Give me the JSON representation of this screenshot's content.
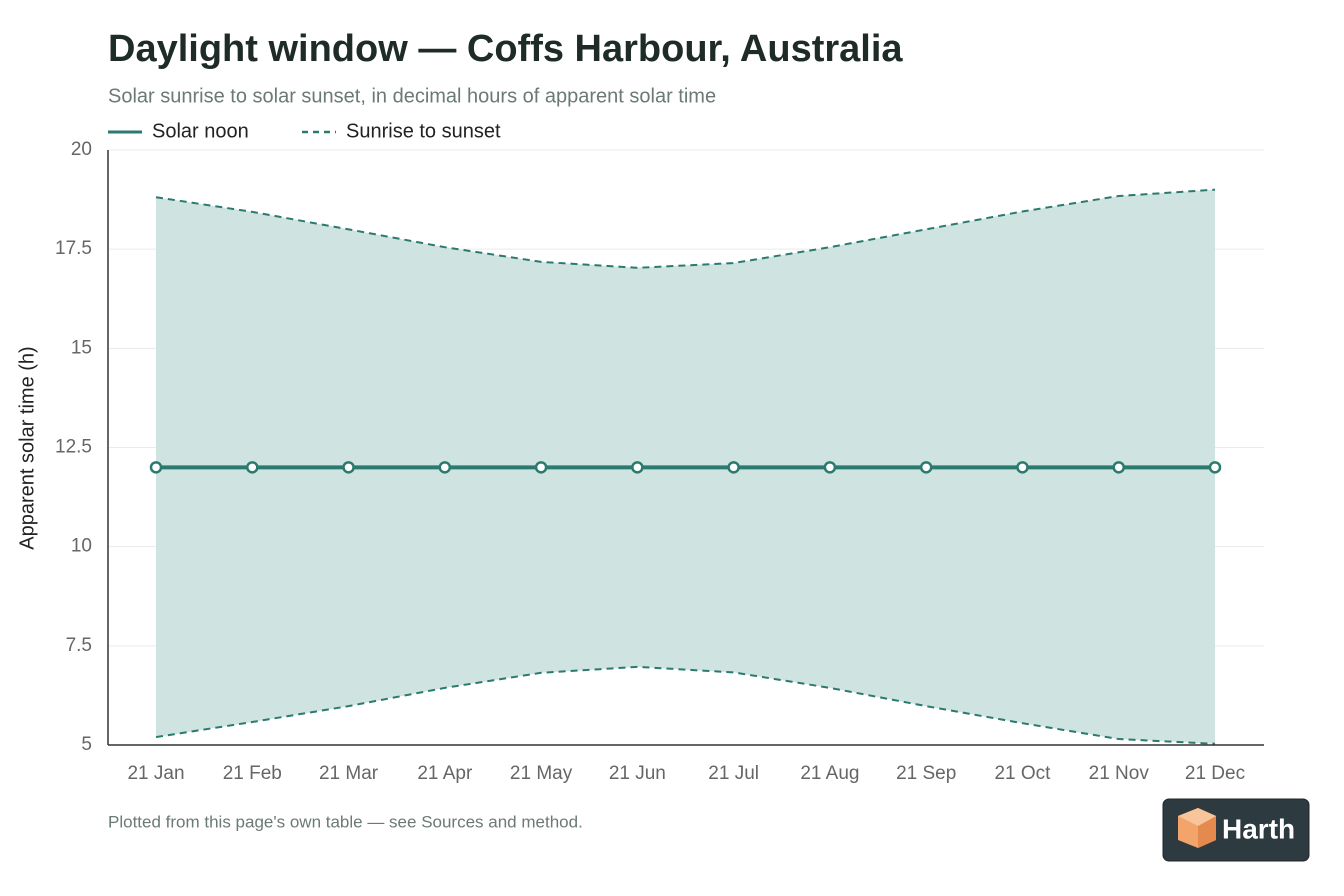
{
  "chart_data": {
    "type": "band-line",
    "title": "Daylight window — Coffs Harbour, Australia",
    "subtitle": "Solar sunrise to solar sunset, in decimal hours of apparent solar time",
    "y_label": "Apparent solar time (h)",
    "note": "Plotted from this page's own table — see Sources and method.",
    "categories": [
      "21 Jan",
      "21 Feb",
      "21 Mar",
      "21 Apr",
      "21 May",
      "21 Jun",
      "21 Jul",
      "21 Aug",
      "21 Sep",
      "21 Oct",
      "21 Nov",
      "21 Dec"
    ],
    "series": [
      {
        "name": "Solar noon",
        "color": "#2a7a6f",
        "values": [
          12,
          12,
          12,
          12,
          12,
          12,
          12,
          12,
          12,
          12,
          12,
          12
        ]
      }
    ],
    "band": {
      "name": "Sunrise to sunset",
      "color": "#2a7a6f",
      "fill": "#cfe4e0",
      "lower": [
        5.2,
        5.58,
        5.98,
        6.44,
        6.82,
        6.97,
        6.83,
        6.44,
        5.98,
        5.55,
        5.15,
        5.03
      ],
      "upper": [
        18.81,
        18.44,
        18.0,
        17.55,
        17.18,
        17.03,
        17.15,
        17.55,
        18.0,
        18.45,
        18.84,
        19.0
      ]
    },
    "ylim": [
      5,
      20
    ],
    "yticks": [
      5,
      7.5,
      10,
      12.5,
      15,
      17.5,
      20
    ],
    "grid": true
  },
  "brand": {
    "name": "Harth"
  }
}
